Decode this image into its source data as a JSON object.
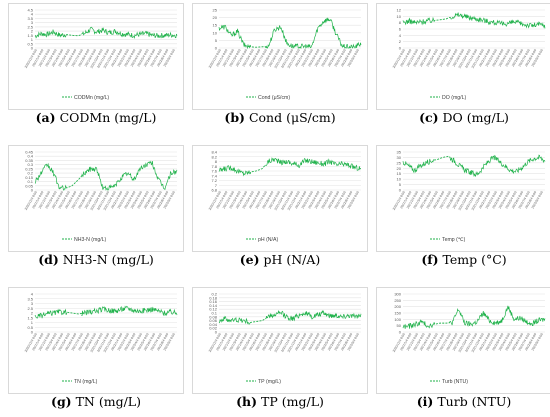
{
  "panels": [
    {
      "letter": "(a)",
      "caption": "CODMn (mg/L)"
    },
    {
      "letter": "(b)",
      "caption": "Cond (μS/cm)"
    },
    {
      "letter": "(c)",
      "caption": "DO (mg/L)"
    },
    {
      "letter": "(d)",
      "caption": "NH3-N (mg/L)"
    },
    {
      "letter": "(e)",
      "caption": "pH (N/A)"
    },
    {
      "letter": "(f)",
      "caption": "Temp (°C)"
    },
    {
      "letter": "(g)",
      "caption": "TN (mg/L)"
    },
    {
      "letter": "(h)",
      "caption": "TP (mg/L)"
    },
    {
      "letter": "(i)",
      "caption": "Turb (NTU)"
    }
  ],
  "colors": {
    "series": "#1fb24a",
    "grid": "#e3e3e3",
    "tick": "#595959"
  },
  "chart_data": [
    {
      "type": "line",
      "series": [
        {
          "name": "CODMn (mg/L)"
        }
      ],
      "ylim": [
        0,
        4.5
      ],
      "yticks": [
        "0",
        "0.5",
        "1",
        "1.5",
        "2",
        "2.5",
        "3",
        "3.5",
        "4",
        "4.5"
      ],
      "grid": true,
      "legend": "bottom",
      "values": [
        1.4,
        1.7,
        1.6,
        1.9,
        1.5,
        1.6,
        1.5,
        1.45,
        1.7,
        2.2,
        1.9,
        2.1,
        1.8,
        2.0,
        1.7,
        1.6,
        1.5,
        1.6,
        1.7,
        1.5,
        1.45,
        1.5,
        1.55,
        1.5
      ]
    },
    {
      "type": "line",
      "series": [
        {
          "name": "Cond (μS/cm)"
        }
      ],
      "ylim": [
        0,
        25
      ],
      "yticks": [
        "0",
        "5",
        "10",
        "15",
        "20",
        "25"
      ],
      "grid": true,
      "legend": "bottom",
      "values": [
        13,
        14,
        8,
        11,
        2,
        0.8,
        0.5,
        0.8,
        1,
        12,
        14,
        3,
        1,
        1,
        1,
        0.6,
        13,
        18,
        19,
        9,
        1,
        0.5,
        0.5,
        3
      ]
    },
    {
      "type": "line",
      "series": [
        {
          "name": "DO (mg/L)"
        }
      ],
      "ylim": [
        0,
        12
      ],
      "yticks": [
        "0",
        "2",
        "4",
        "6",
        "8",
        "10",
        "12"
      ],
      "grid": true,
      "legend": "bottom",
      "values": [
        8,
        8.5,
        8,
        8.3,
        8.6,
        8.7,
        8.9,
        9.2,
        10,
        10.5,
        10,
        9.5,
        9.2,
        8.8,
        8.3,
        8,
        7.6,
        7.8,
        8.2,
        7.7,
        7.3,
        7.1,
        7.5,
        7
      ]
    },
    {
      "type": "line",
      "series": [
        {
          "name": "NH3-N (mg/L)"
        }
      ],
      "ylim": [
        0,
        0.45
      ],
      "yticks": [
        "0",
        "0.05",
        "0.1",
        "0.15",
        "0.2",
        "0.25",
        "0.3",
        "0.35",
        "0.4",
        "0.45"
      ],
      "grid": true,
      "legend": "bottom",
      "values": [
        0.1,
        0.2,
        0.3,
        0.2,
        0.02,
        0.02,
        0.05,
        0.12,
        0.2,
        0.25,
        0.25,
        0.02,
        0.02,
        0.05,
        0.15,
        0.2,
        0.12,
        0.25,
        0.3,
        0.32,
        0.12,
        0.02,
        0.2,
        0.22
      ]
    },
    {
      "type": "line",
      "series": [
        {
          "name": "pH (N/A)"
        }
      ],
      "ylim": [
        6.8,
        8.4
      ],
      "yticks": [
        "6.8",
        "7",
        "7.2",
        "7.4",
        "7.6",
        "7.8",
        "8",
        "8.2",
        "8.4"
      ],
      "grid": true,
      "legend": "bottom",
      "values": [
        7.6,
        7.7,
        7.75,
        7.6,
        7.5,
        7.55,
        7.6,
        7.7,
        8.0,
        8.1,
        7.95,
        8.0,
        7.9,
        7.85,
        8.05,
        8.0,
        7.95,
        7.9,
        8.0,
        7.85,
        7.9,
        7.85,
        7.75,
        7.7
      ]
    },
    {
      "type": "line",
      "series": [
        {
          "name": "Temp (℃)"
        }
      ],
      "ylim": [
        0,
        35
      ],
      "yticks": [
        "0",
        "5",
        "10",
        "15",
        "20",
        "25",
        "30",
        "35"
      ],
      "grid": true,
      "legend": "bottom",
      "values": [
        26,
        22,
        18,
        22,
        25,
        27,
        28,
        30,
        31,
        27,
        22,
        18,
        16,
        14,
        20,
        26,
        30,
        26,
        22,
        18,
        17,
        21,
        26,
        29,
        30,
        27
      ]
    },
    {
      "type": "line",
      "series": [
        {
          "name": "TN (mg/L)"
        }
      ],
      "ylim": [
        0,
        4
      ],
      "yticks": [
        "0",
        "0.5",
        "1",
        "1.5",
        "2",
        "2.5",
        "3",
        "3.5",
        "4"
      ],
      "grid": true,
      "legend": "bottom",
      "values": [
        1.6,
        1.7,
        1.9,
        2.0,
        2.1,
        2.1,
        2.0,
        1.9,
        2.0,
        2.1,
        2.2,
        2.4,
        2.3,
        2.2,
        2.4,
        2.5,
        2.3,
        2.2,
        2.3,
        2.4,
        2.2,
        2.0,
        2.1,
        2.0
      ]
    },
    {
      "type": "line",
      "series": [
        {
          "name": "TP (mg/L)"
        }
      ],
      "ylim": [
        0,
        0.2
      ],
      "yticks": [
        "0",
        "0.02",
        "0.04",
        "0.06",
        "0.08",
        "0.1",
        "0.12",
        "0.14",
        "0.16",
        "0.18",
        "0.2"
      ],
      "grid": true,
      "legend": "bottom",
      "values": [
        0.06,
        0.07,
        0.06,
        0.065,
        0.06,
        0.05,
        0.055,
        0.06,
        0.08,
        0.09,
        0.1,
        0.08,
        0.07,
        0.09,
        0.1,
        0.08,
        0.09,
        0.1,
        0.085,
        0.09,
        0.08,
        0.09,
        0.08,
        0.085
      ]
    },
    {
      "type": "line",
      "series": [
        {
          "name": "Turb (NTU)"
        }
      ],
      "ylim": [
        0,
        300
      ],
      "yticks": [
        "0",
        "50",
        "100",
        "150",
        "200",
        "250",
        "300"
      ],
      "grid": true,
      "legend": "bottom",
      "values": [
        40,
        45,
        60,
        80,
        50,
        60,
        70,
        70,
        75,
        180,
        70,
        60,
        80,
        150,
        90,
        70,
        90,
        200,
        100,
        110,
        80,
        70,
        90,
        100
      ]
    }
  ],
  "x_tick_labels": [
    "2020/12/4 8:00",
    "2021/1/4 8:00",
    "2021/2/4 8:00",
    "2021/3/4 8:00",
    "2021/4/4 8:00",
    "2021/5/4 8:00",
    "2021/6/4 8:00",
    "2021/7/4 8:00",
    "2021/8/4 8:00",
    "2021/9/4 8:00",
    "2021/10/4 8:00",
    "2021/11/4 8:00",
    "2021/12/4 8:00",
    "2022/1/4 8:00",
    "2022/2/4 8:00",
    "2022/3/4 8:00",
    "2022/4/4 8:00",
    "2022/5/4 8:00",
    "2022/6/4 8:00",
    "2022/7/4 8:00",
    "2022/8/4 8:00",
    "2022/9/4 8:00"
  ]
}
